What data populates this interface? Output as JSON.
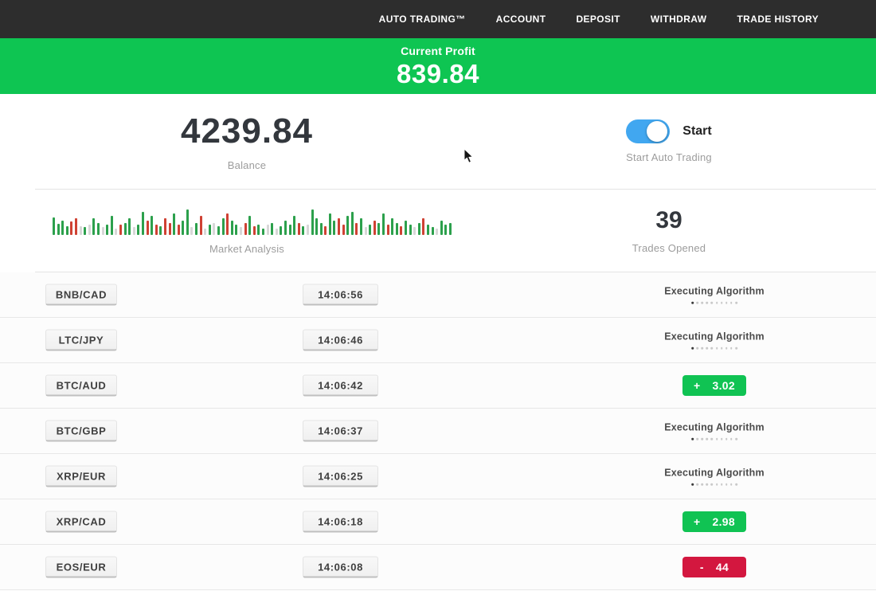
{
  "nav": {
    "items": [
      "AUTO TRADING™",
      "ACCOUNT",
      "DEPOSIT",
      "WITHDRAW",
      "TRADE HISTORY"
    ]
  },
  "profit_banner": {
    "label": "Current Profit",
    "value": "839.84",
    "background": "#0ec552"
  },
  "dashboard": {
    "balance_value": "4239.84",
    "balance_label": "Balance",
    "toggle_label": "Start",
    "toggle_caption": "Start Auto Trading",
    "toggle_on": true,
    "toggle_color": "#41a7f0",
    "market_label": "Market Analysis",
    "trades_opened_value": "39",
    "trades_opened_label": "Trades Opened"
  },
  "statuses": {
    "executing_label": "Executing Algorithm",
    "executing_dots": 10
  },
  "trades": [
    {
      "pair": "BNB/CAD",
      "time": "14:06:56",
      "status": "executing"
    },
    {
      "pair": "LTC/JPY",
      "time": "14:06:46",
      "status": "executing"
    },
    {
      "pair": "BTC/AUD",
      "time": "14:06:42",
      "status": "profit",
      "sign": "+",
      "result": "3.02"
    },
    {
      "pair": "BTC/GBP",
      "time": "14:06:37",
      "status": "executing"
    },
    {
      "pair": "XRP/EUR",
      "time": "14:06:25",
      "status": "executing"
    },
    {
      "pair": "XRP/CAD",
      "time": "14:06:18",
      "status": "profit",
      "sign": "+",
      "result": "2.98"
    },
    {
      "pair": "EOS/EUR",
      "time": "14:06:08",
      "status": "loss",
      "sign": "-",
      "result": "44"
    }
  ],
  "colors": {
    "nav_background": "#2d2d2d",
    "banner_green": "#0ec552",
    "profit_badge_green": "#10c353",
    "loss_badge_red": "#d3173f",
    "toggle_blue": "#41a7f0",
    "candle_green": "#2ca04c",
    "candle_red": "#cf4133",
    "candle_gray": "#d7d7d7"
  },
  "chart_data": {
    "type": "bar",
    "title": "Market Analysis",
    "description": "decorative candlestick-style strip; c = color (g green, r red, l light gray), number = bar height px",
    "bars": [
      "g22",
      "g14",
      "g18",
      "g11",
      "r17",
      "r21",
      "l11",
      "g10",
      "l13",
      "g21",
      "g15",
      "l10",
      "g13",
      "g24",
      "l8",
      "r13",
      "g15",
      "g21",
      "l10",
      "g13",
      "g29",
      "r18",
      "g24",
      "r13",
      "g11",
      "r21",
      "r15",
      "g27",
      "r13",
      "g18",
      "g32",
      "l10",
      "g15",
      "r24",
      "l8",
      "g13",
      "l15",
      "g11",
      "g21",
      "r27",
      "g18",
      "g13",
      "l10",
      "r15",
      "g24",
      "r11",
      "g13",
      "g8",
      "l13",
      "g15",
      "l8",
      "g11",
      "g18",
      "g13",
      "g24",
      "r15",
      "g11",
      "l13",
      "g32",
      "g21",
      "g15",
      "r11",
      "g27",
      "g18",
      "r21",
      "r13",
      "g24",
      "g29",
      "r15",
      "g21",
      "l10",
      "g13",
      "r18",
      "g15",
      "g27",
      "r13",
      "g21",
      "g15",
      "r11",
      "g18",
      "g13",
      "l10",
      "g15",
      "r21",
      "g13",
      "g10",
      "l8",
      "g18",
      "g13",
      "g15"
    ]
  }
}
